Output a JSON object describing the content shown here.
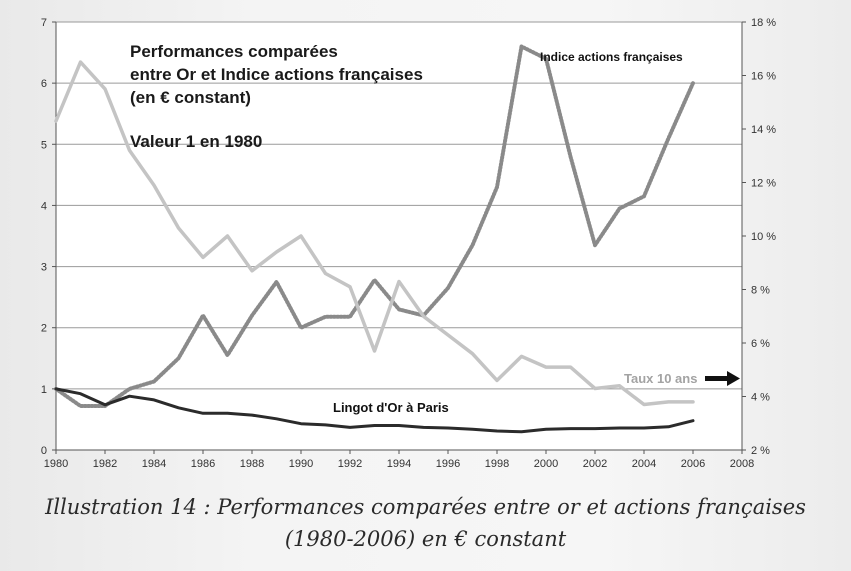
{
  "chart_data": {
    "type": "line",
    "title_lines": [
      "Performances comparées",
      "entre Or et Indice actions françaises",
      "(en € constant)"
    ],
    "subtitle": "Valeur 1 en 1980",
    "x_ticks": [
      "1980",
      "1982",
      "1984",
      "1986",
      "1988",
      "1990",
      "1992",
      "1994",
      "1996",
      "1998",
      "2000",
      "2002",
      "2004",
      "2006",
      "2008"
    ],
    "xlim": [
      1980,
      2008
    ],
    "y_left_ticks": [
      "0",
      "1",
      "2",
      "3",
      "4",
      "5",
      "6",
      "7"
    ],
    "ylim_left": [
      0,
      7
    ],
    "y_right_ticks": [
      "2 %",
      "4 %",
      "6 %",
      "8 %",
      "10 %",
      "12 %",
      "14 %",
      "16 %",
      "18 %"
    ],
    "ylim_right": [
      2,
      18
    ],
    "grid": true,
    "series": [
      {
        "name": "Indice actions françaises",
        "axis": "left",
        "style": "dotted",
        "color": "#8a8a8a",
        "x": [
          1980,
          1981,
          1982,
          1983,
          1984,
          1985,
          1986,
          1987,
          1988,
          1989,
          1990,
          1991,
          1992,
          1993,
          1994,
          1995,
          1996,
          1997,
          1998,
          1999,
          2000,
          2001,
          2002,
          2003,
          2004,
          2005,
          2006
        ],
        "values": [
          1.0,
          0.72,
          0.72,
          1.0,
          1.12,
          1.5,
          2.2,
          1.55,
          2.2,
          2.75,
          2.0,
          2.18,
          2.18,
          2.78,
          2.3,
          2.2,
          2.65,
          3.35,
          4.3,
          6.6,
          6.4,
          4.8,
          3.35,
          3.95,
          4.15,
          5.1,
          6.0
        ]
      },
      {
        "name": "Taux 10 ans",
        "axis": "right",
        "style": "solid",
        "color": "#c4c4c4",
        "x": [
          1980,
          1981,
          1982,
          1983,
          1984,
          1985,
          1986,
          1987,
          1988,
          1989,
          1990,
          1991,
          1992,
          1993,
          1994,
          1995,
          1996,
          1997,
          1998,
          1999,
          2000,
          2001,
          2002,
          2003,
          2004,
          2005,
          2006
        ],
        "values": [
          14.3,
          16.5,
          15.5,
          13.2,
          11.9,
          10.3,
          9.2,
          10.0,
          8.7,
          9.4,
          10.0,
          8.6,
          8.1,
          5.7,
          8.3,
          7.0,
          6.3,
          5.6,
          4.6,
          5.5,
          5.1,
          5.1,
          4.3,
          4.4,
          3.7,
          3.8,
          3.8
        ]
      },
      {
        "name": "Lingot d'Or à Paris",
        "axis": "left",
        "style": "solid",
        "color": "#2b2b2b",
        "x": [
          1980,
          1981,
          1982,
          1983,
          1984,
          1985,
          1986,
          1987,
          1988,
          1989,
          1990,
          1991,
          1992,
          1993,
          1994,
          1995,
          1996,
          1997,
          1998,
          1999,
          2000,
          2001,
          2002,
          2003,
          2004,
          2005,
          2006
        ],
        "values": [
          1.0,
          0.92,
          0.74,
          0.88,
          0.82,
          0.69,
          0.6,
          0.6,
          0.57,
          0.51,
          0.43,
          0.41,
          0.37,
          0.4,
          0.4,
          0.37,
          0.36,
          0.34,
          0.31,
          0.3,
          0.34,
          0.35,
          0.35,
          0.36,
          0.36,
          0.38,
          0.48
        ]
      }
    ],
    "annotations": {
      "stock_label": "Indice actions françaises",
      "gold_label": "Lingot d'Or à Paris",
      "rate_label": "Taux 10 ans"
    }
  },
  "caption": {
    "line1": "Illustration 14 :  Performances comparées entre or et actions françaises",
    "line2": "(1980-2006) en € constant"
  }
}
